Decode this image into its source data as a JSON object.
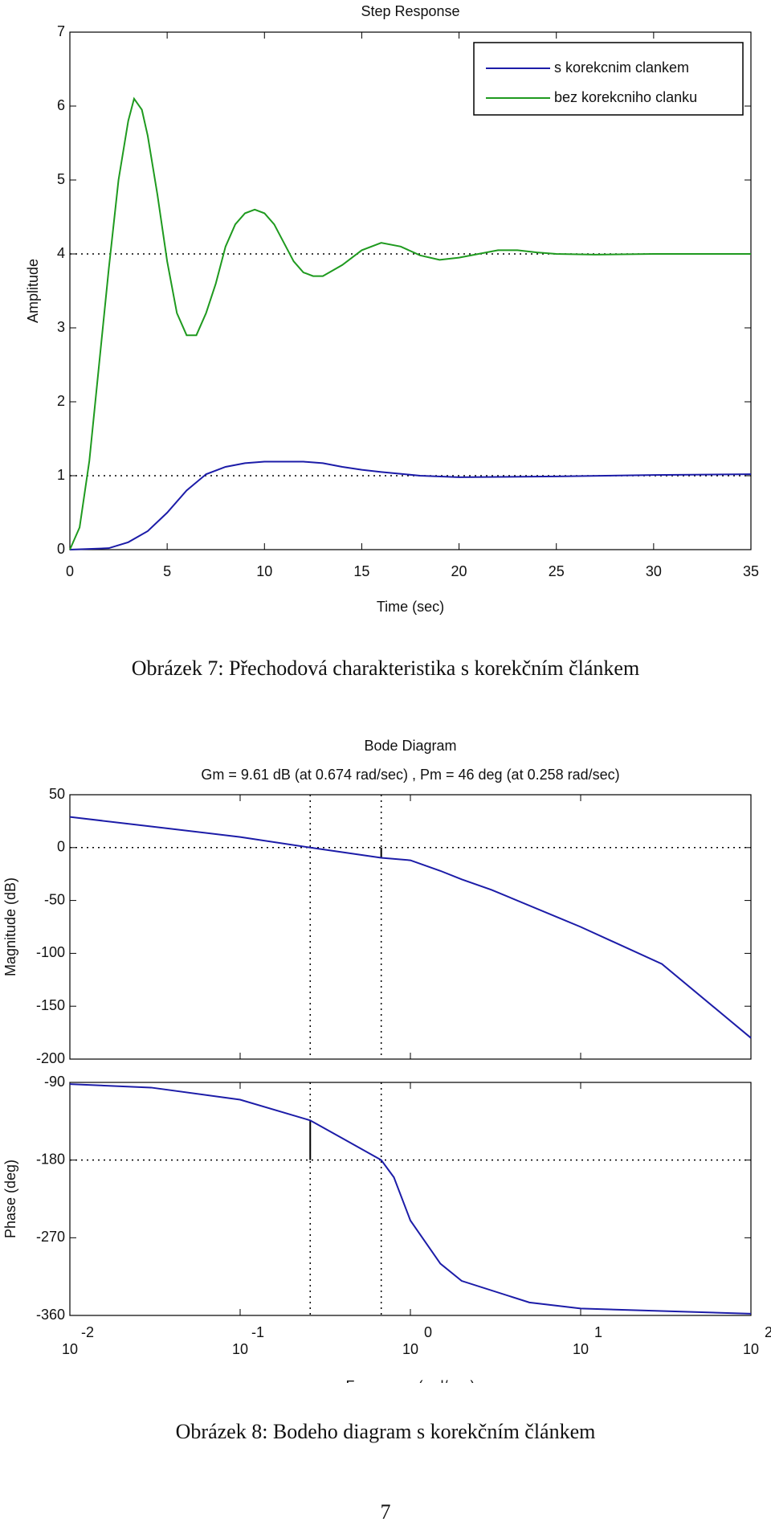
{
  "chart_data": [
    {
      "type": "line",
      "title": "Step Response",
      "xlabel": "Time (sec)",
      "ylabel": "Amplitude",
      "xlim": [
        0,
        35
      ],
      "xticks": [
        0,
        5,
        10,
        15,
        20,
        25,
        30,
        35
      ],
      "ylim": [
        0,
        7
      ],
      "yticks": [
        0,
        1,
        2,
        3,
        4,
        5,
        6,
        7
      ],
      "legend": "upper right",
      "reference_lines": [
        4,
        1
      ],
      "series": [
        {
          "name": "s korekcnim clankem",
          "color": "#1c1ca8",
          "x": [
            0,
            2,
            3,
            4,
            5,
            6,
            7,
            8,
            9,
            10,
            12,
            13,
            14,
            15,
            16,
            18,
            20,
            25,
            30,
            35
          ],
          "values": [
            0,
            0.02,
            0.1,
            0.25,
            0.5,
            0.8,
            1.02,
            1.12,
            1.17,
            1.19,
            1.19,
            1.17,
            1.12,
            1.08,
            1.05,
            1.0,
            0.98,
            0.99,
            1.01,
            1.02
          ]
        },
        {
          "name": "bez korekcniho clanku",
          "color": "#1f9a1f",
          "x": [
            0,
            0.5,
            1,
            1.5,
            2,
            2.5,
            3,
            3.3,
            3.7,
            4,
            4.5,
            5,
            5.5,
            6,
            6.5,
            7,
            7.5,
            8,
            8.5,
            9,
            9.5,
            10,
            10.5,
            11,
            11.5,
            12,
            12.5,
            13,
            14,
            15,
            16,
            17,
            18,
            19,
            20,
            21,
            22,
            23,
            24,
            25,
            27,
            30,
            35
          ],
          "values": [
            0,
            0.3,
            1.2,
            2.5,
            3.8,
            5.0,
            5.8,
            6.1,
            5.95,
            5.6,
            4.8,
            3.9,
            3.2,
            2.9,
            2.9,
            3.2,
            3.6,
            4.1,
            4.4,
            4.55,
            4.6,
            4.55,
            4.4,
            4.15,
            3.9,
            3.75,
            3.7,
            3.7,
            3.85,
            4.05,
            4.15,
            4.1,
            3.98,
            3.92,
            3.95,
            4.0,
            4.05,
            4.05,
            4.02,
            4.0,
            3.99,
            4.0,
            4.0
          ]
        }
      ]
    },
    {
      "type": "line",
      "title": "Bode Diagram",
      "subtitle": "Gm = 9.61 dB (at 0.674 rad/sec) ,  Pm = 46 deg (at 0.258 rad/sec)",
      "ylabel": "Magnitude (dB)",
      "xscale": "log",
      "xlim": [
        0.01,
        100
      ],
      "xticks": [
        0.01,
        0.1,
        1,
        10,
        100
      ],
      "ylim": [
        -200,
        50
      ],
      "yticks": [
        -200,
        -150,
        -100,
        -50,
        0,
        50
      ],
      "reference_lines": [
        0
      ],
      "vlines": [
        0.258,
        0.674
      ],
      "margin_bar": {
        "x": 0.674,
        "from": 0,
        "to": -9.61
      },
      "series": [
        {
          "color": "#1c1ca8",
          "x": [
            0.01,
            0.03,
            0.1,
            0.258,
            0.674,
            1,
            1.5,
            2,
            3,
            10,
            30,
            100
          ],
          "values": [
            29,
            20,
            10,
            0,
            -9.61,
            -12,
            -22,
            -30,
            -40,
            -75,
            -110,
            -180
          ]
        }
      ]
    },
    {
      "type": "line",
      "xlabel": "Frequency  (rad/sec)",
      "ylabel": "Phase (deg)",
      "xscale": "log",
      "xlim": [
        0.01,
        100
      ],
      "xticks": [
        {
          "value": 0.01,
          "label": "10",
          "exponent": "-2"
        },
        {
          "value": 0.1,
          "label": "10",
          "exponent": "-1"
        },
        {
          "value": 1,
          "label": "10",
          "exponent": "0"
        },
        {
          "value": 10,
          "label": "10",
          "exponent": "1"
        },
        {
          "value": 100,
          "label": "10",
          "exponent": "2"
        }
      ],
      "ylim": [
        -360,
        -90
      ],
      "yticks": [
        -360,
        -270,
        -180,
        -90
      ],
      "reference_lines": [
        -180
      ],
      "vlines": [
        0.258,
        0.674
      ],
      "margin_bar": {
        "x": 0.258,
        "from": -180,
        "to": -134
      },
      "series": [
        {
          "color": "#1c1ca8",
          "x": [
            0.01,
            0.03,
            0.1,
            0.258,
            0.4,
            0.674,
            0.8,
            1,
            1.5,
            2,
            5,
            10,
            100
          ],
          "values": [
            -92,
            -96,
            -110,
            -134,
            -155,
            -180,
            -200,
            -250,
            -300,
            -320,
            -345,
            -352,
            -358
          ]
        }
      ]
    }
  ],
  "captions": [
    "Obrázek 7: Přechodová charakteristika s korekčním článkem",
    "Obrázek 8: Bodeho diagram s korekčním článkem"
  ],
  "page_number": "7"
}
